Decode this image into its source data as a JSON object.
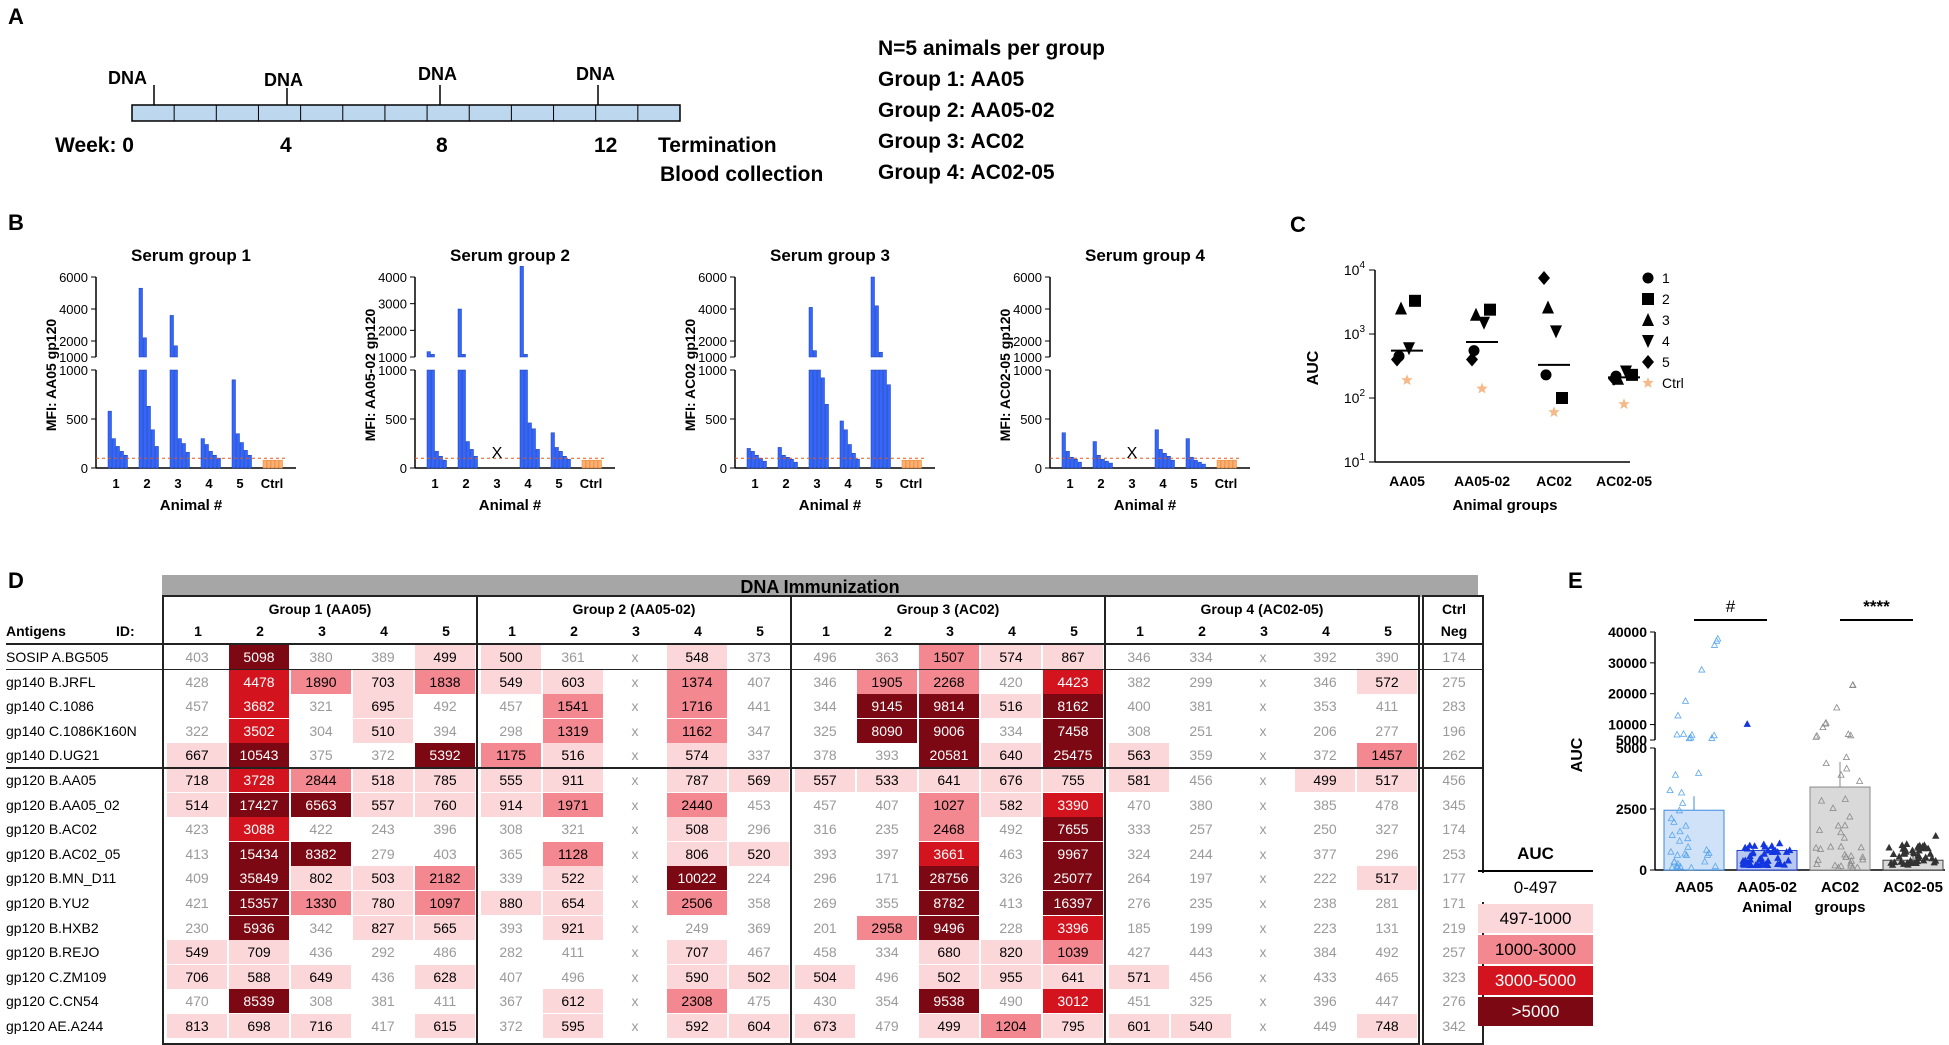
{
  "panel_labels": {
    "a": "A",
    "b": "B",
    "c": "C",
    "d": "D",
    "e": "E"
  },
  "panel_a": {
    "dna_labels": [
      "DNA",
      "DNA",
      "DNA",
      "DNA"
    ],
    "week_label": "Week: 0",
    "weeks": [
      "4",
      "8",
      "12"
    ],
    "termination": "Termination",
    "blood": "Blood collection",
    "group_info": [
      "N=5 animals per group",
      "Group 1: AA05",
      "Group 2: AA05-02",
      "Group 3: AC02",
      "Group 4: AC02-05"
    ]
  },
  "panel_b": {
    "xlabel": "Animal #",
    "ticks_x": [
      "1",
      "2",
      "3",
      "4",
      "5",
      "Ctrl"
    ],
    "charts": [
      {
        "title": "Serum group 1",
        "ylabel": "MFI: AA05 gp120",
        "upper_ticks": [
          "6000",
          "4000",
          "2000",
          "1000"
        ],
        "lower_ticks": [
          "1000",
          "500",
          "0"
        ],
        "missing": "",
        "animals": [
          [
            580,
            300,
            220,
            170,
            130
          ],
          [
            5300,
            2200,
            630,
            390,
            220
          ],
          [
            3600,
            1700,
            300,
            250,
            160
          ],
          [
            300,
            240,
            170,
            130,
            100
          ],
          [
            900,
            350,
            260,
            180,
            130
          ]
        ]
      },
      {
        "title": "Serum group 2",
        "ylabel": "MFI: AA05-02 gp120",
        "upper_ticks": [
          "4000",
          "3000",
          "2000",
          "1000"
        ],
        "lower_ticks": [
          "1000",
          "500",
          "0"
        ],
        "missing": "X",
        "animals": [
          [
            1200,
            1100,
            170,
            120,
            80
          ],
          [
            2800,
            1100,
            270,
            190,
            120
          ],
          [
            0,
            0,
            0,
            0,
            0
          ],
          [
            4400,
            1100,
            460,
            400,
            190
          ],
          [
            360,
            210,
            170,
            120,
            90
          ]
        ]
      },
      {
        "title": "Serum group 3",
        "ylabel": "MFI: AC02 gp120",
        "upper_ticks": [
          "6000",
          "4000",
          "2000",
          "1000"
        ],
        "lower_ticks": [
          "1000",
          "500",
          "0"
        ],
        "missing": "",
        "animals": [
          [
            200,
            170,
            130,
            100,
            70
          ],
          [
            210,
            130,
            110,
            90,
            60
          ],
          [
            4100,
            1400,
            1000,
            920,
            650
          ],
          [
            480,
            390,
            240,
            150,
            90
          ],
          [
            6000,
            4200,
            1300,
            1000,
            850
          ]
        ]
      },
      {
        "title": "Serum group 4",
        "ylabel": "MFI: AC02-05 gp120",
        "upper_ticks": [
          "6000",
          "4000",
          "2000",
          "1000"
        ],
        "lower_ticks": [
          "1000",
          "500",
          "0"
        ],
        "missing": "X",
        "animals": [
          [
            360,
            170,
            110,
            90,
            60
          ],
          [
            270,
            130,
            90,
            70,
            50
          ],
          [
            0,
            0,
            0,
            0,
            0
          ],
          [
            390,
            190,
            150,
            120,
            80
          ],
          [
            300,
            110,
            80,
            60,
            40
          ]
        ]
      }
    ]
  },
  "panel_c": {
    "ylabel": "AUC",
    "xlabel": "Animal  groups",
    "yticks": [
      "10^4",
      "10^3",
      "10^2",
      "10^1"
    ],
    "groups": [
      "AA05",
      "AA05-02",
      "AC02",
      "AC02-05"
    ],
    "legend": [
      "1",
      "2",
      "3",
      "4",
      "5",
      "Ctrl"
    ],
    "ctrl_color": "#f5b98a"
  },
  "chart_data": [
    {
      "type": "scatter",
      "title": "",
      "xlabel": "Animal  groups",
      "ylabel": "AUC",
      "yscale": "log",
      "ylim": [
        10,
        10000
      ],
      "categories": [
        "AA05",
        "AA05-02",
        "AC02",
        "AC02-05"
      ],
      "series": [
        {
          "name": "1",
          "values": [
            450,
            550,
            230,
            220
          ]
        },
        {
          "name": "2",
          "values": [
            3300,
            2400,
            100,
            230
          ]
        },
        {
          "name": "3",
          "values": [
            2500,
            2000,
            2600,
            200
          ]
        },
        {
          "name": "4",
          "values": [
            600,
            1500,
            1100,
            260
          ]
        },
        {
          "name": "5",
          "values": [
            400,
            400,
            7500,
            200
          ]
        },
        {
          "name": "Ctrl",
          "values": [
            190,
            140,
            60,
            80
          ]
        }
      ],
      "medians": [
        550,
        750,
        330,
        210
      ]
    },
    {
      "type": "bar",
      "title": "",
      "xlabel": "Animal groups",
      "ylabel": "AUC",
      "categories": [
        "AA05",
        "AA05-02",
        "AC02",
        "AC02-05"
      ],
      "values": [
        2450,
        800,
        3400,
        400
      ],
      "yticks": [
        "40000",
        "30000",
        "20000",
        "10000",
        "5000",
        "2500",
        "0"
      ],
      "significance": [
        "#",
        "****"
      ]
    }
  ],
  "panel_e": {
    "ylabel": "AUC",
    "xlabels": [
      "AA05",
      "AA05-02",
      "AC02",
      "AC02-05"
    ],
    "subx": [
      "Animal",
      "groups"
    ],
    "sig1": "#",
    "sig2": "****",
    "yticks_upper": [
      "40000",
      "30000",
      "20000",
      "10000",
      "5000"
    ],
    "yticks_lower": [
      "5000",
      "2500",
      "0"
    ]
  },
  "panel_d": {
    "banner": "DNA Immunization",
    "groups": [
      "Group 1 (AA05)",
      "Group 2 (AA05-02)",
      "Group 3 (AC02)",
      "Group 4 (AC02-05)"
    ],
    "ctrl": "Ctrl",
    "neg": "Neg",
    "antigens_label": "Antigens",
    "id_label": "ID:",
    "ids": [
      "1",
      "2",
      "3",
      "4",
      "5"
    ],
    "legend_title": "AUC",
    "legend": [
      "0-497",
      "497-1000",
      "1000-3000",
      "3000-5000",
      ">5000"
    ],
    "rows": [
      {
        "name": "SOSIP A.BG505",
        "vals": [
          "403",
          "5098",
          "380",
          "389",
          "499",
          "500",
          "361",
          "x",
          "548",
          "373",
          "496",
          "363",
          "1507",
          "574",
          "867",
          "346",
          "334",
          "x",
          "392",
          "390",
          "174"
        ]
      },
      {
        "name": "gp140 B.JRFL",
        "vals": [
          "428",
          "4478",
          "1890",
          "703",
          "1838",
          "549",
          "603",
          "x",
          "1374",
          "407",
          "346",
          "1905",
          "2268",
          "420",
          "4423",
          "382",
          "299",
          "x",
          "346",
          "572",
          "275"
        ]
      },
      {
        "name": "gp140 C.1086",
        "vals": [
          "457",
          "3682",
          "321",
          "695",
          "492",
          "457",
          "1541",
          "x",
          "1716",
          "441",
          "344",
          "9145",
          "9814",
          "516",
          "8162",
          "400",
          "381",
          "x",
          "353",
          "411",
          "283"
        ]
      },
      {
        "name": "gp140 C.1086K160N",
        "vals": [
          "322",
          "3502",
          "304",
          "510",
          "394",
          "298",
          "1319",
          "x",
          "1162",
          "347",
          "325",
          "8090",
          "9006",
          "334",
          "7458",
          "308",
          "251",
          "x",
          "206",
          "277",
          "196"
        ]
      },
      {
        "name": "gp140 D.UG21",
        "vals": [
          "667",
          "10543",
          "375",
          "372",
          "5392",
          "1175",
          "516",
          "x",
          "574",
          "337",
          "378",
          "393",
          "20581",
          "640",
          "25475",
          "563",
          "359",
          "x",
          "372",
          "1457",
          "262"
        ]
      },
      {
        "name": "gp120 B.AA05",
        "vals": [
          "718",
          "3728",
          "2844",
          "518",
          "785",
          "555",
          "911",
          "x",
          "787",
          "569",
          "557",
          "533",
          "641",
          "676",
          "755",
          "581",
          "456",
          "x",
          "499",
          "517",
          "456"
        ]
      },
      {
        "name": "gp120 B.AA05_02",
        "vals": [
          "514",
          "17427",
          "6563",
          "557",
          "760",
          "914",
          "1971",
          "x",
          "2440",
          "453",
          "457",
          "407",
          "1027",
          "582",
          "3390",
          "470",
          "380",
          "x",
          "385",
          "478",
          "345"
        ]
      },
      {
        "name": "gp120 B.AC02",
        "vals": [
          "423",
          "3088",
          "422",
          "243",
          "396",
          "308",
          "321",
          "x",
          "508",
          "296",
          "316",
          "235",
          "2468",
          "492",
          "7655",
          "333",
          "257",
          "x",
          "250",
          "327",
          "174"
        ]
      },
      {
        "name": "gp120 B.AC02_05",
        "vals": [
          "413",
          "15434",
          "8382",
          "279",
          "403",
          "365",
          "1128",
          "x",
          "806",
          "520",
          "393",
          "397",
          "3661",
          "463",
          "9967",
          "324",
          "244",
          "x",
          "377",
          "296",
          "253"
        ]
      },
      {
        "name": "gp120 B.MN_D11",
        "vals": [
          "409",
          "35849",
          "802",
          "503",
          "2182",
          "339",
          "522",
          "x",
          "10022",
          "224",
          "296",
          "171",
          "28756",
          "326",
          "25077",
          "264",
          "197",
          "x",
          "222",
          "517",
          "177"
        ]
      },
      {
        "name": "gp120 B.YU2",
        "vals": [
          "421",
          "15357",
          "1330",
          "780",
          "1097",
          "880",
          "654",
          "x",
          "2506",
          "358",
          "269",
          "355",
          "8782",
          "413",
          "16397",
          "276",
          "235",
          "x",
          "238",
          "281",
          "171"
        ]
      },
      {
        "name": "gp120 B.HXB2",
        "vals": [
          "230",
          "5936",
          "342",
          "827",
          "565",
          "393",
          "921",
          "x",
          "249",
          "369",
          "201",
          "2958",
          "9496",
          "228",
          "3396",
          "185",
          "199",
          "x",
          "223",
          "131",
          "219"
        ]
      },
      {
        "name": "gp120 B.REJO",
        "vals": [
          "549",
          "709",
          "436",
          "292",
          "486",
          "282",
          "411",
          "x",
          "707",
          "467",
          "458",
          "334",
          "680",
          "820",
          "1039",
          "427",
          "443",
          "x",
          "384",
          "492",
          "257"
        ]
      },
      {
        "name": "gp120 C.ZM109",
        "vals": [
          "706",
          "588",
          "649",
          "436",
          "628",
          "407",
          "496",
          "x",
          "590",
          "502",
          "504",
          "496",
          "502",
          "955",
          "641",
          "571",
          "456",
          "x",
          "433",
          "465",
          "323"
        ]
      },
      {
        "name": "gp120 C.CN54",
        "vals": [
          "470",
          "8539",
          "308",
          "381",
          "411",
          "367",
          "612",
          "x",
          "2308",
          "475",
          "430",
          "354",
          "9538",
          "490",
          "3012",
          "451",
          "325",
          "x",
          "396",
          "447",
          "276"
        ]
      },
      {
        "name": "gp120 AE.A244",
        "vals": [
          "813",
          "698",
          "716",
          "417",
          "615",
          "372",
          "595",
          "x",
          "592",
          "604",
          "673",
          "479",
          "499",
          "1204",
          "795",
          "601",
          "540",
          "x",
          "449",
          "748",
          "342"
        ]
      }
    ]
  }
}
